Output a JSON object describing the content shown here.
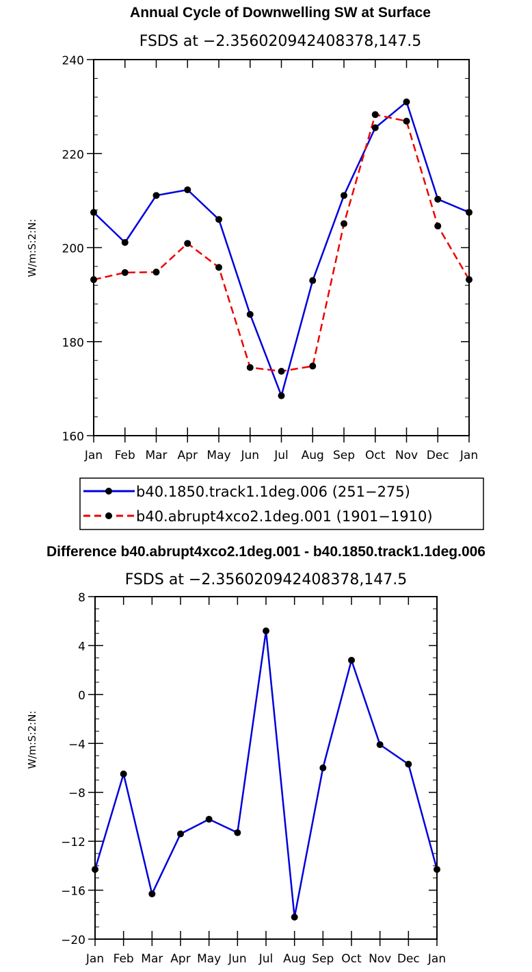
{
  "chart_data": [
    {
      "type": "line",
      "title": "Annual Cycle of Downwelling SW at Surface",
      "subtitle": "FSDS at −2.356020942408378,147.5",
      "xlabel": "",
      "ylabel": "W/m:S:2:N:",
      "categories": [
        "Jan",
        "Feb",
        "Mar",
        "Apr",
        "May",
        "Jun",
        "Jul",
        "Aug",
        "Sep",
        "Oct",
        "Nov",
        "Dec",
        "Jan"
      ],
      "ylim": [
        160,
        240
      ],
      "yticks": [
        "160",
        "180",
        "200",
        "220",
        "240"
      ],
      "ytick_values": [
        160,
        180,
        200,
        220,
        240
      ],
      "series": [
        {
          "name": "b40.1850.track1.1deg.006 (251−275)",
          "color": "#0000dd",
          "dash": "solid",
          "values": [
            207.5,
            201.1,
            211.1,
            212.3,
            206.0,
            185.8,
            168.5,
            193.0,
            211.1,
            225.5,
            231.0,
            210.3,
            207.5
          ]
        },
        {
          "name": "b40.abrupt4xco2.1deg.001 (1901−1910)",
          "color": "#ee0000",
          "dash": "dashed",
          "values": [
            193.2,
            194.7,
            194.8,
            200.9,
            195.8,
            174.5,
            173.7,
            174.8,
            205.1,
            228.3,
            226.9,
            204.6,
            193.2
          ]
        }
      ]
    },
    {
      "type": "line",
      "title": "Difference b40.abrupt4xco2.1deg.001 - b40.1850.track1.1deg.006",
      "subtitle": "FSDS at −2.356020942408378,147.5",
      "xlabel": "",
      "ylabel": "W/m:S:2:N:",
      "categories": [
        "Jan",
        "Feb",
        "Mar",
        "Apr",
        "May",
        "Jun",
        "Jul",
        "Aug",
        "Sep",
        "Oct",
        "Nov",
        "Dec",
        "Jan"
      ],
      "ylim": [
        -20,
        8
      ],
      "yticks": [
        "−20",
        "−16",
        "−12",
        "−8",
        "−4",
        "0",
        "4",
        "8"
      ],
      "ytick_values": [
        -20,
        -16,
        -12,
        -8,
        -4,
        0,
        4,
        8
      ],
      "series": [
        {
          "name": "Difference",
          "color": "#0000dd",
          "dash": "solid",
          "values": [
            -14.3,
            -6.5,
            -16.3,
            -11.4,
            -10.2,
            -11.3,
            5.2,
            -18.2,
            -6.0,
            2.8,
            -4.1,
            -5.7,
            -14.3
          ]
        }
      ]
    }
  ]
}
